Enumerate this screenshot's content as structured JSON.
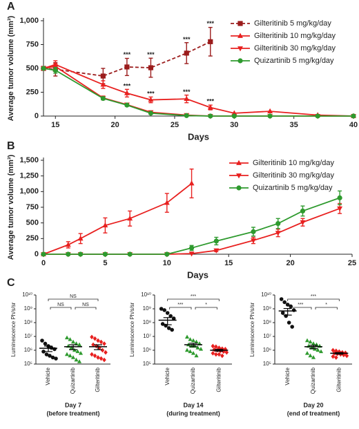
{
  "chart_data": [
    {
      "type": "line",
      "panel": "A",
      "xlabel": "Days",
      "ylabel": "Average tumor volume (mm³)",
      "x": [
        14,
        15,
        19,
        21,
        23,
        26,
        28,
        30,
        33,
        37,
        40
      ],
      "xlim": [
        14,
        40
      ],
      "xticks": [
        15,
        20,
        25,
        30,
        35,
        40
      ],
      "ylim": [
        0,
        1000
      ],
      "yticks": [
        0,
        250,
        500,
        750,
        {
          "value": 1000,
          "label": "1,000"
        }
      ],
      "legend": "upper right",
      "series": [
        {
          "name": "Gilteritinib 5 mg/kg/day",
          "color": "#9b1c1c",
          "marker": "square",
          "dashed": true,
          "values": [
            500,
            490,
            420,
            515,
            507,
            660,
            780,
            null,
            null,
            null,
            null
          ],
          "errors": [
            null,
            70,
            80,
            90,
            100,
            110,
            150,
            null,
            null,
            null,
            null
          ]
        },
        {
          "name": "Gilteritinib 10 mg/kg/day",
          "color": "#e8201f",
          "marker": "triangle",
          "dashed": false,
          "values": [
            500,
            540,
            330,
            240,
            170,
            180,
            90,
            30,
            50,
            10,
            0
          ],
          "errors": [
            null,
            40,
            40,
            40,
            30,
            40,
            25,
            null,
            null,
            null,
            null
          ]
        },
        {
          "name": "Gilteritinib 30 mg/kg/day",
          "color": "#e8201f",
          "marker": "triangle-down",
          "dashed": false,
          "values": [
            500,
            520,
            190,
            120,
            40,
            10,
            0,
            0,
            0,
            0,
            0
          ],
          "errors": [
            null,
            30,
            20,
            15,
            10,
            null,
            null,
            null,
            null,
            null,
            null
          ]
        },
        {
          "name": "Quizartinib 5 mg/kg/day",
          "color": "#2e9a2e",
          "marker": "circle",
          "dashed": false,
          "values": [
            500,
            480,
            185,
            115,
            30,
            5,
            0,
            0,
            0,
            0,
            0
          ],
          "errors": [
            null,
            30,
            15,
            10,
            null,
            null,
            null,
            null,
            null,
            null,
            null
          ]
        }
      ],
      "annotations": [
        {
          "text": "***",
          "x": 21,
          "y": 640
        },
        {
          "text": "***",
          "x": 23,
          "y": 640
        },
        {
          "text": "***",
          "x": 26,
          "y": 800
        },
        {
          "text": "***",
          "x": 28,
          "y": 965
        },
        {
          "text": "***",
          "x": 21,
          "y": 310
        },
        {
          "text": "***",
          "x": 23,
          "y": 230
        },
        {
          "text": "***",
          "x": 26,
          "y": 250
        },
        {
          "text": "***",
          "x": 28,
          "y": 150
        }
      ]
    },
    {
      "type": "line",
      "panel": "B",
      "xlabel": "Days",
      "ylabel": "Average tumor volume (mm³)",
      "x": [
        0,
        2,
        3,
        5,
        7,
        10,
        12,
        14,
        17,
        19,
        21,
        24
      ],
      "xlim": [
        0,
        25
      ],
      "xticks": [
        0,
        5,
        10,
        15,
        20,
        25
      ],
      "ylim": [
        0,
        1500
      ],
      "yticks": [
        0,
        250,
        500,
        750,
        {
          "value": 1000,
          "label": "1,000"
        },
        {
          "value": 1250,
          "label": "1,250"
        },
        {
          "value": 1500,
          "label": "1,500"
        }
      ],
      "legend": "upper right",
      "series": [
        {
          "name": "Gilteritinib 10 mg/kg/day",
          "color": "#e8201f",
          "marker": "triangle",
          "dashed": false,
          "values": [
            0,
            150,
            250,
            460,
            570,
            820,
            1130,
            null,
            null,
            null,
            null,
            null
          ],
          "errors": [
            null,
            50,
            80,
            120,
            120,
            150,
            230,
            null,
            null,
            null,
            null,
            null
          ]
        },
        {
          "name": "Gilteritinib 30 mg/kg/day",
          "color": "#e8201f",
          "marker": "triangle-down",
          "dashed": false,
          "values": [
            0,
            0,
            0,
            0,
            0,
            0,
            10,
            60,
            220,
            340,
            510,
            730
          ],
          "errors": [
            null,
            null,
            null,
            null,
            null,
            null,
            null,
            20,
            50,
            60,
            60,
            80
          ]
        },
        {
          "name": "Quizartinib 5 mg/kg/day",
          "color": "#2e9a2e",
          "marker": "circle",
          "dashed": false,
          "values": [
            0,
            0,
            0,
            0,
            0,
            0,
            100,
            210,
            360,
            490,
            690,
            900
          ],
          "errors": [
            null,
            null,
            null,
            null,
            null,
            null,
            40,
            60,
            70,
            80,
            80,
            110
          ]
        }
      ]
    },
    {
      "type": "dot",
      "panel": "C",
      "xlabel": [
        "Day 7",
        "(before treatment)"
      ],
      "ylabel": "Luminescence Ph/s/sr",
      "log_scale": true,
      "ylim": [
        100000,
        10000000000
      ],
      "yticks": [
        {
          "value": 100000,
          "label": "10⁵"
        },
        {
          "value": 1000000,
          "label": "10⁶"
        },
        {
          "value": 10000000,
          "label": "10⁷"
        },
        {
          "value": 100000000,
          "label": "10⁸"
        },
        {
          "value": 1000000000,
          "label": "10⁹"
        },
        {
          "value": 10000000000,
          "label": "10¹⁰"
        }
      ],
      "groups": [
        {
          "name": "Vehicle",
          "color": "#111111",
          "marker": "circle",
          "mean": 1400000,
          "sem": 600000,
          "values": [
            5000000,
            3000000,
            2000000,
            1500000,
            1200000,
            800000,
            500000,
            400000,
            300000,
            250000
          ]
        },
        {
          "name": "Quizartinib",
          "color": "#2e9a2e",
          "marker": "triangle",
          "mean": 1800000,
          "sem": 700000,
          "values": [
            8000000,
            6000000,
            4000000,
            3000000,
            2500000,
            2000000,
            1500000,
            1000000,
            800000,
            600000,
            500000,
            400000,
            300000,
            200000,
            150000
          ]
        },
        {
          "name": "Gilteritinib",
          "color": "#e8201f",
          "marker": "diamond",
          "mean": 1800000,
          "sem": 700000,
          "values": [
            9000000,
            7000000,
            5000000,
            4000000,
            3000000,
            2500000,
            2000000,
            1500000,
            1000000,
            700000,
            500000,
            400000,
            300000,
            250000,
            200000
          ]
        }
      ],
      "comparisons": [
        {
          "from": "Vehicle",
          "to": "Gilteritinib",
          "label": "NS"
        },
        {
          "from": "Vehicle",
          "to": "Quizartinib",
          "label": "NS"
        },
        {
          "from": "Quizartinib",
          "to": "Gilteritinib",
          "label": "NS"
        }
      ]
    },
    {
      "type": "dot",
      "xlabel": [
        "Day 14",
        "(during treatment)"
      ],
      "ylabel": "Luminescence Ph/s/sr",
      "log_scale": true,
      "ylim": [
        100000,
        10000000000
      ],
      "yticks": [
        {
          "value": 100000,
          "label": "10⁵"
        },
        {
          "value": 1000000,
          "label": "10⁶"
        },
        {
          "value": 10000000,
          "label": "10⁷"
        },
        {
          "value": 100000000,
          "label": "10⁸"
        },
        {
          "value": 1000000000,
          "label": "10⁹"
        },
        {
          "value": 10000000000,
          "label": "10¹⁰"
        }
      ],
      "groups": [
        {
          "name": "Vehicle",
          "color": "#111111",
          "marker": "circle",
          "mean": 150000000,
          "sem": 80000000,
          "values": [
            1000000000,
            800000000,
            500000000,
            300000000,
            200000000,
            80000000,
            60000000,
            40000000,
            30000000
          ]
        },
        {
          "name": "Quizartinib",
          "color": "#2e9a2e",
          "marker": "triangle",
          "mean": 2500000,
          "sem": 700000,
          "values": [
            9000000,
            6000000,
            5000000,
            4000000,
            3000000,
            2500000,
            2000000,
            2000000,
            1500000,
            1200000,
            1000000,
            800000,
            600000,
            400000
          ]
        },
        {
          "name": "Gilteritinib",
          "color": "#e8201f",
          "marker": "diamond",
          "mean": 1000000,
          "sem": 150000,
          "values": [
            2000000,
            1800000,
            1500000,
            1300000,
            1200000,
            1100000,
            1000000,
            900000,
            800000,
            700000,
            600000,
            500000,
            500000,
            400000
          ]
        }
      ],
      "comparisons": [
        {
          "from": "Vehicle",
          "to": "Gilteritinib",
          "label": "***"
        },
        {
          "from": "Vehicle",
          "to": "Quizartinib",
          "label": "***"
        },
        {
          "from": "Quizartinib",
          "to": "Gilteritinib",
          "label": "*"
        }
      ]
    },
    {
      "type": "dot",
      "xlabel": [
        "Day 20",
        "(end of treatment)"
      ],
      "ylabel": "Luminescence Ph/s/sr",
      "log_scale": true,
      "ylim": [
        100000,
        10000000000
      ],
      "yticks": [
        {
          "value": 100000,
          "label": "10⁵"
        },
        {
          "value": 1000000,
          "label": "10⁶"
        },
        {
          "value": 10000000,
          "label": "10⁷"
        },
        {
          "value": 100000000,
          "label": "10⁸"
        },
        {
          "value": 1000000000,
          "label": "10⁹"
        },
        {
          "value": 10000000000,
          "label": "10¹⁰"
        }
      ],
      "groups": [
        {
          "name": "Vehicle",
          "color": "#111111",
          "marker": "circle",
          "mean": 700000000,
          "sem": 350000000,
          "values": [
            5000000000,
            3000000000,
            2000000000,
            1500000000,
            800000000,
            500000000,
            300000000,
            100000000,
            50000000
          ]
        },
        {
          "name": "Quizartinib",
          "color": "#2e9a2e",
          "marker": "triangle",
          "mean": 1800000,
          "sem": 500000,
          "values": [
            5000000,
            4000000,
            3000000,
            2500000,
            2000000,
            2000000,
            1500000,
            1200000,
            1000000,
            800000,
            600000,
            400000,
            300000
          ]
        },
        {
          "name": "Gilteritinib",
          "color": "#e8201f",
          "marker": "diamond",
          "mean": 600000,
          "sem": 80000,
          "values": [
            1000000,
            900000,
            800000,
            700000,
            650000,
            600000,
            550000,
            500000,
            450000,
            400000,
            350000,
            300000
          ]
        }
      ],
      "comparisons": [
        {
          "from": "Vehicle",
          "to": "Gilteritinib",
          "label": "***"
        },
        {
          "from": "Vehicle",
          "to": "Quizartinib",
          "label": "***"
        },
        {
          "from": "Quizartinib",
          "to": "Gilteritinib",
          "label": "*"
        }
      ]
    }
  ]
}
